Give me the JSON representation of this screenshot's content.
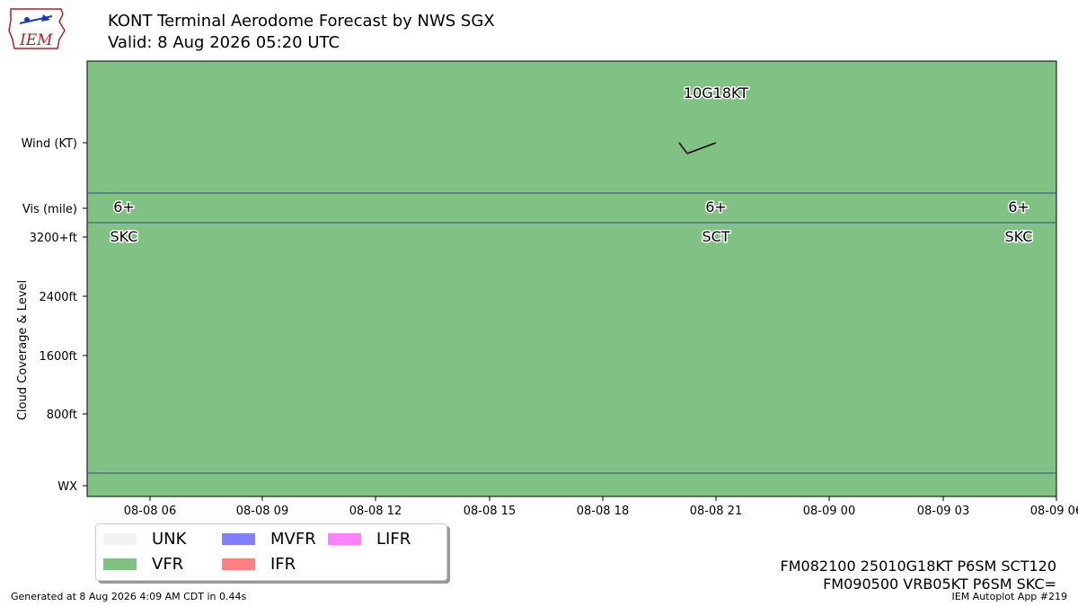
{
  "logo_text": "IEM",
  "title": "KONT Terminal Aerodome Forecast by NWS SGX",
  "subtitle": "Valid: 8 Aug 2026 05:20 UTC",
  "chart_data": {
    "type": "timeline",
    "ylabel": "Cloud Coverage & Level",
    "row_labels": [
      "Wind (KT)",
      "Vis (mile)",
      "3200+ft",
      "2400ft",
      "1600ft",
      "800ft",
      "WX"
    ],
    "x_ticks": [
      "08-08 06",
      "08-08 09",
      "08-08 12",
      "08-08 15",
      "08-08 18",
      "08-08 21",
      "08-09 00",
      "08-09 03",
      "08-09 06"
    ],
    "background_category": "VFR",
    "wind_labels": [
      {
        "x": "08-08 21",
        "text": "10G18KT"
      }
    ],
    "wind_barbs": [
      {
        "x": "08-08 21",
        "direction_deg": 250,
        "speed_kt": 10,
        "gust_kt": 18
      }
    ],
    "visibility": [
      {
        "x": "08-08 05:20",
        "text": "6+"
      },
      {
        "x": "08-08 21",
        "text": "6+"
      },
      {
        "x": "08-09 05",
        "text": "6+"
      }
    ],
    "clouds": [
      {
        "x": "08-08 05:20",
        "text": "SKC"
      },
      {
        "x": "08-08 21",
        "text": "SCT"
      },
      {
        "x": "08-09 05",
        "text": "SKC"
      }
    ],
    "colors": {
      "VFR": "#80c283",
      "UNK": "#f2f2f2",
      "MVFR": "#8080ff",
      "IFR": "#ff8080",
      "LIFR": "#ff80ff"
    }
  },
  "legend": [
    {
      "label": "UNK",
      "color": "#f2f2f2"
    },
    {
      "label": "MVFR",
      "color": "#8080ff"
    },
    {
      "label": "LIFR",
      "color": "#ff80ff"
    },
    {
      "label": "VFR",
      "color": "#80c283"
    },
    {
      "label": "IFR",
      "color": "#ff8080"
    }
  ],
  "taf_lines": [
    "FM082100 25010G18KT P6SM SCT120",
    "FM090500 VRB05KT P6SM SKC="
  ],
  "footer_left": "Generated at 8 Aug 2026 4:09 AM CDT in 0.44s",
  "footer_right": "IEM Autoplot App #219"
}
